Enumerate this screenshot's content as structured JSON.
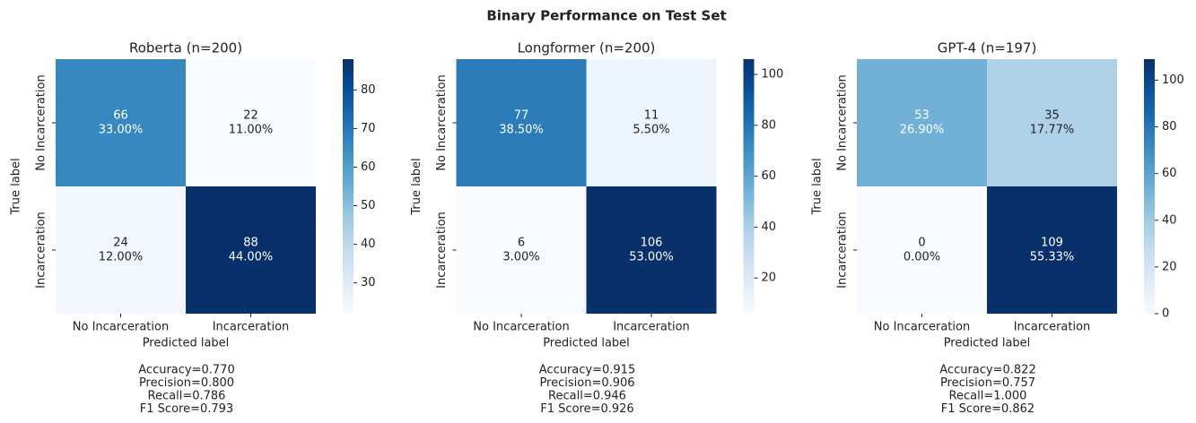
{
  "title": "Binary Performance on Test Set",
  "chart_data": [
    {
      "type": "heatmap",
      "title": "Roberta (n=200)",
      "colormap": "Blues",
      "x_categories": [
        "No Incarceration",
        "Incarceration"
      ],
      "y_categories": [
        "No Incarceration",
        "Incarceration"
      ],
      "values": [
        [
          66,
          22
        ],
        [
          24,
          88
        ]
      ],
      "percent_labels": [
        [
          "33.00%",
          "11.00%"
        ],
        [
          "12.00%",
          "44.00%"
        ]
      ],
      "xlabel": "Predicted label",
      "ylabel": "True label",
      "clim": [
        22,
        88
      ],
      "cticks": [
        30,
        40,
        50,
        60,
        70,
        80
      ],
      "metrics": [
        "Accuracy=0.770",
        "Precision=0.800",
        "Recall=0.786",
        "F1 Score=0.793"
      ]
    },
    {
      "type": "heatmap",
      "title": "Longformer (n=200)",
      "colormap": "Blues",
      "x_categories": [
        "No Incarceration",
        "Incarceration"
      ],
      "y_categories": [
        "No Incarceration",
        "Incarceration"
      ],
      "values": [
        [
          77,
          11
        ],
        [
          6,
          106
        ]
      ],
      "percent_labels": [
        [
          "38.50%",
          "5.50%"
        ],
        [
          "3.00%",
          "53.00%"
        ]
      ],
      "xlabel": "Predicted label",
      "ylabel": "True label",
      "clim": [
        6,
        106
      ],
      "cticks": [
        20,
        40,
        60,
        80,
        100
      ],
      "metrics": [
        "Accuracy=0.915",
        "Precision=0.906",
        "Recall=0.946",
        "F1 Score=0.926"
      ]
    },
    {
      "type": "heatmap",
      "title": "GPT-4  (n=197)",
      "colormap": "Blues",
      "x_categories": [
        "No Incarceration",
        "Incarceration"
      ],
      "y_categories": [
        "No Incarceration",
        "Incarceration"
      ],
      "values": [
        [
          53,
          35
        ],
        [
          0,
          109
        ]
      ],
      "percent_labels": [
        [
          "26.90%",
          "17.77%"
        ],
        [
          "0.00%",
          "55.33%"
        ]
      ],
      "xlabel": "Predicted label",
      "ylabel": "True label",
      "clim": [
        0,
        109
      ],
      "cticks": [
        0,
        20,
        40,
        60,
        80,
        100
      ],
      "metrics": [
        "Accuracy=0.822",
        "Precision=0.757",
        "Recall=1.000",
        "F1 Score=0.862"
      ]
    }
  ]
}
